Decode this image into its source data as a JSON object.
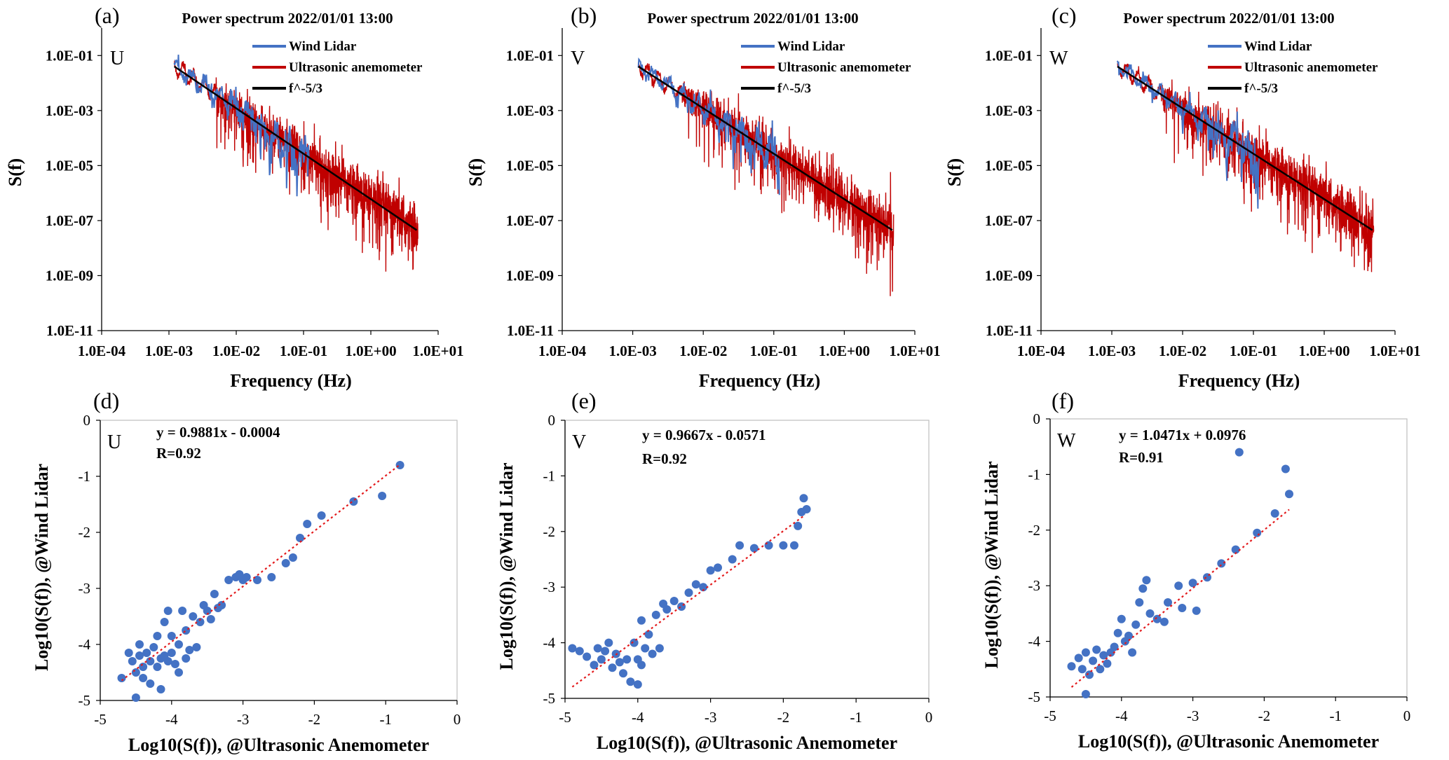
{
  "colors": {
    "lidar": "#4472C4",
    "ultrasonic": "#C00000",
    "fit": "#000000",
    "scatter": "#4472C4",
    "trend": "#E31A1C",
    "axis": "#000000"
  },
  "chart_data": [
    {
      "panel": "(a)",
      "component": "U",
      "type": "line",
      "title": "Power spectrum 2022/01/01 13:00",
      "xlabel": "Frequency (Hz)",
      "ylabel": "S(f)",
      "xscale": "log",
      "yscale": "log",
      "xlim": [
        0.0001,
        10
      ],
      "ylim": [
        1e-11,
        1
      ],
      "xticks": [
        "1.0E-04",
        "1.0E-03",
        "1.0E-02",
        "1.0E-01",
        "1.0E+00",
        "1.0E+01"
      ],
      "yticks": [
        "1.0E-11",
        "1.0E-09",
        "1.0E-07",
        "1.0E-05",
        "1.0E-03",
        "1.0E-01"
      ],
      "legend": [
        "Wind Lidar",
        "Ultrasonic anemometer",
        "f^-5/3"
      ],
      "reference_line": {
        "f_start": 0.0012,
        "S_start": 0.04,
        "f_end": 4.8,
        "S_end": 4.5e-08
      },
      "lidar_freq_range": [
        0.0012,
        0.12
      ],
      "ultrasonic_freq_range": [
        0.0012,
        5
      ]
    },
    {
      "panel": "(b)",
      "component": "V",
      "type": "line",
      "title": "Power spectrum 2022/01/01 13:00",
      "xlabel": "Frequency (Hz)",
      "ylabel": "S(f)",
      "xscale": "log",
      "yscale": "log",
      "xlim": [
        0.0001,
        10
      ],
      "ylim": [
        1e-11,
        1
      ],
      "xticks": [
        "1.0E-04",
        "1.0E-03",
        "1.0E-02",
        "1.0E-01",
        "1.0E+00",
        "1.0E+01"
      ],
      "yticks": [
        "1.0E-11",
        "1.0E-09",
        "1.0E-07",
        "1.0E-05",
        "1.0E-03",
        "1.0E-01"
      ],
      "legend": [
        "Wind Lidar",
        "Ultrasonic anemometer",
        "f^-5/3"
      ],
      "reference_line": {
        "f_start": 0.0012,
        "S_start": 0.04,
        "f_end": 4.8,
        "S_end": 4.5e-08
      },
      "lidar_freq_range": [
        0.0012,
        0.12
      ],
      "ultrasonic_freq_range": [
        0.0012,
        5
      ]
    },
    {
      "panel": "(c)",
      "component": "W",
      "type": "line",
      "title": "Power spectrum 2022/01/01 13:00",
      "xlabel": "Frequency (Hz)",
      "ylabel": "S(f)",
      "xscale": "log",
      "yscale": "log",
      "xlim": [
        0.0001,
        10
      ],
      "ylim": [
        1e-11,
        1
      ],
      "xticks": [
        "1.0E-04",
        "1.0E-03",
        "1.0E-02",
        "1.0E-01",
        "1.0E+00",
        "1.0E+01"
      ],
      "yticks": [
        "1.0E-11",
        "1.0E-09",
        "1.0E-07",
        "1.0E-05",
        "1.0E-03",
        "1.0E-01"
      ],
      "legend": [
        "Wind Lidar",
        "Ultrasonic anemometer",
        "f^-5/3"
      ],
      "reference_line": {
        "f_start": 0.0012,
        "S_start": 0.04,
        "f_end": 4.8,
        "S_end": 4.5e-08
      },
      "lidar_freq_range": [
        0.0012,
        0.12
      ],
      "ultrasonic_freq_range": [
        0.0012,
        5
      ]
    },
    {
      "panel": "(d)",
      "component": "U",
      "type": "scatter",
      "xlabel": "Log10(S(f)), @Ultrasonic Anemometer",
      "ylabel": "Log10(S(f)), @Wind Lidar",
      "xlim": [
        -5,
        0
      ],
      "ylim": [
        -5,
        0
      ],
      "xticks": [
        "-5",
        "-4",
        "-3",
        "-2",
        "-1",
        "0"
      ],
      "yticks": [
        "-5",
        "-4",
        "-3",
        "-2",
        "-1",
        "0"
      ],
      "equation": "y = 0.9881x - 0.0004",
      "r_label": "R=0.92",
      "fit": {
        "slope": 0.9881,
        "intercept": -0.0004,
        "x_range": [
          -4.7,
          -0.8
        ]
      },
      "points": [
        [
          -4.7,
          -4.6
        ],
        [
          -4.6,
          -4.15
        ],
        [
          -4.55,
          -4.3
        ],
        [
          -4.5,
          -4.5
        ],
        [
          -4.5,
          -4.95
        ],
        [
          -4.45,
          -4.2
        ],
        [
          -4.45,
          -4.0
        ],
        [
          -4.4,
          -4.4
        ],
        [
          -4.4,
          -4.6
        ],
        [
          -4.35,
          -4.15
        ],
        [
          -4.3,
          -4.3
        ],
        [
          -4.3,
          -4.7
        ],
        [
          -4.25,
          -4.05
        ],
        [
          -4.2,
          -4.4
        ],
        [
          -4.2,
          -3.85
        ],
        [
          -4.15,
          -4.25
        ],
        [
          -4.15,
          -4.8
        ],
        [
          -4.1,
          -3.6
        ],
        [
          -4.1,
          -4.2
        ],
        [
          -4.05,
          -3.4
        ],
        [
          -4.05,
          -4.3
        ],
        [
          -4.0,
          -4.15
        ],
        [
          -4.0,
          -3.85
        ],
        [
          -3.95,
          -4.35
        ],
        [
          -3.9,
          -4.0
        ],
        [
          -3.9,
          -4.5
        ],
        [
          -3.85,
          -3.4
        ],
        [
          -3.8,
          -4.25
        ],
        [
          -3.8,
          -3.75
        ],
        [
          -3.75,
          -4.1
        ],
        [
          -3.7,
          -3.5
        ],
        [
          -3.65,
          -4.05
        ],
        [
          -3.6,
          -3.6
        ],
        [
          -3.55,
          -3.3
        ],
        [
          -3.5,
          -3.4
        ],
        [
          -3.45,
          -3.55
        ],
        [
          -3.4,
          -3.1
        ],
        [
          -3.35,
          -3.35
        ],
        [
          -3.3,
          -3.3
        ],
        [
          -3.2,
          -2.85
        ],
        [
          -3.1,
          -2.8
        ],
        [
          -3.05,
          -2.75
        ],
        [
          -3.0,
          -2.85
        ],
        [
          -2.95,
          -2.8
        ],
        [
          -2.8,
          -2.85
        ],
        [
          -2.6,
          -2.8
        ],
        [
          -2.4,
          -2.55
        ],
        [
          -2.3,
          -2.45
        ],
        [
          -2.2,
          -2.1
        ],
        [
          -2.1,
          -1.85
        ],
        [
          -1.9,
          -1.7
        ],
        [
          -1.45,
          -1.45
        ],
        [
          -1.05,
          -1.35
        ],
        [
          -0.8,
          -0.8
        ]
      ]
    },
    {
      "panel": "(e)",
      "component": "V",
      "type": "scatter",
      "xlabel": "Log10(S(f)), @Ultrasonic Anemometer",
      "ylabel": "Log10(S(f)), @Wind Lidar",
      "xlim": [
        -5,
        0
      ],
      "ylim": [
        -5,
        0
      ],
      "xticks": [
        "-5",
        "-4",
        "-3",
        "-2",
        "-1",
        "0"
      ],
      "yticks": [
        "-5",
        "-4",
        "-3",
        "-2",
        "-1",
        "0"
      ],
      "equation": "y = 0.9667x - 0.0571",
      "r_label": "R=0.92",
      "fit": {
        "slope": 0.9667,
        "intercept": -0.0571,
        "x_range": [
          -4.9,
          -1.7
        ]
      },
      "points": [
        [
          -4.9,
          -4.1
        ],
        [
          -4.8,
          -4.15
        ],
        [
          -4.7,
          -4.25
        ],
        [
          -4.6,
          -4.4
        ],
        [
          -4.55,
          -4.1
        ],
        [
          -4.5,
          -4.3
        ],
        [
          -4.45,
          -4.15
        ],
        [
          -4.4,
          -4.0
        ],
        [
          -4.35,
          -4.45
        ],
        [
          -4.3,
          -4.2
        ],
        [
          -4.25,
          -4.35
        ],
        [
          -4.2,
          -4.55
        ],
        [
          -4.15,
          -4.3
        ],
        [
          -4.1,
          -4.7
        ],
        [
          -4.05,
          -4.0
        ],
        [
          -4.0,
          -4.75
        ],
        [
          -4.0,
          -4.3
        ],
        [
          -3.95,
          -4.4
        ],
        [
          -3.95,
          -3.6
        ],
        [
          -3.9,
          -4.1
        ],
        [
          -3.85,
          -3.85
        ],
        [
          -3.8,
          -4.2
        ],
        [
          -3.75,
          -3.5
        ],
        [
          -3.7,
          -4.1
        ],
        [
          -3.65,
          -3.3
        ],
        [
          -3.6,
          -3.4
        ],
        [
          -3.5,
          -3.25
        ],
        [
          -3.4,
          -3.35
        ],
        [
          -3.3,
          -3.1
        ],
        [
          -3.2,
          -2.95
        ],
        [
          -3.1,
          -3.0
        ],
        [
          -3.0,
          -2.7
        ],
        [
          -2.9,
          -2.65
        ],
        [
          -2.7,
          -2.5
        ],
        [
          -2.6,
          -2.25
        ],
        [
          -2.4,
          -2.3
        ],
        [
          -2.2,
          -2.25
        ],
        [
          -2.0,
          -2.25
        ],
        [
          -1.85,
          -2.25
        ],
        [
          -1.8,
          -1.9
        ],
        [
          -1.75,
          -1.65
        ],
        [
          -1.72,
          -1.4
        ],
        [
          -1.68,
          -1.6
        ]
      ]
    },
    {
      "panel": "(f)",
      "component": "W",
      "type": "scatter",
      "xlabel": "Log10(S(f)), @Ultrasonic Anemometer",
      "ylabel": "Log10(S(f)), @Wind Lidar",
      "xlim": [
        -5,
        0
      ],
      "ylim": [
        -5,
        0
      ],
      "xticks": [
        "-5",
        "-4",
        "-3",
        "-2",
        "-1",
        "0"
      ],
      "yticks": [
        "-5",
        "-4",
        "-3",
        "-2",
        "-1",
        "0"
      ],
      "equation": "y = 1.0471x + 0.0976",
      "r_label": "R=0.91",
      "fit": {
        "slope": 1.0471,
        "intercept": 0.0976,
        "x_range": [
          -4.7,
          -1.65
        ]
      },
      "points": [
        [
          -4.7,
          -4.45
        ],
        [
          -4.6,
          -4.3
        ],
        [
          -4.55,
          -4.5
        ],
        [
          -4.5,
          -4.95
        ],
        [
          -4.5,
          -4.2
        ],
        [
          -4.45,
          -4.6
        ],
        [
          -4.4,
          -4.35
        ],
        [
          -4.35,
          -4.15
        ],
        [
          -4.3,
          -4.5
        ],
        [
          -4.25,
          -4.25
        ],
        [
          -4.2,
          -4.4
        ],
        [
          -4.15,
          -4.2
        ],
        [
          -4.1,
          -4.1
        ],
        [
          -4.05,
          -3.85
        ],
        [
          -4.0,
          -3.6
        ],
        [
          -3.95,
          -4.0
        ],
        [
          -3.9,
          -3.9
        ],
        [
          -3.85,
          -4.2
        ],
        [
          -3.8,
          -3.7
        ],
        [
          -3.75,
          -3.3
        ],
        [
          -3.7,
          -3.05
        ],
        [
          -3.65,
          -2.9
        ],
        [
          -3.6,
          -3.5
        ],
        [
          -3.5,
          -3.6
        ],
        [
          -3.4,
          -3.65
        ],
        [
          -3.35,
          -3.3
        ],
        [
          -3.2,
          -3.0
        ],
        [
          -3.15,
          -3.4
        ],
        [
          -3.0,
          -2.95
        ],
        [
          -2.95,
          -3.45
        ],
        [
          -2.8,
          -2.85
        ],
        [
          -2.6,
          -2.6
        ],
        [
          -2.4,
          -2.35
        ],
        [
          -2.35,
          -0.6
        ],
        [
          -2.1,
          -2.05
        ],
        [
          -1.85,
          -1.7
        ],
        [
          -1.7,
          -0.9
        ],
        [
          -1.65,
          -1.35
        ]
      ]
    }
  ]
}
